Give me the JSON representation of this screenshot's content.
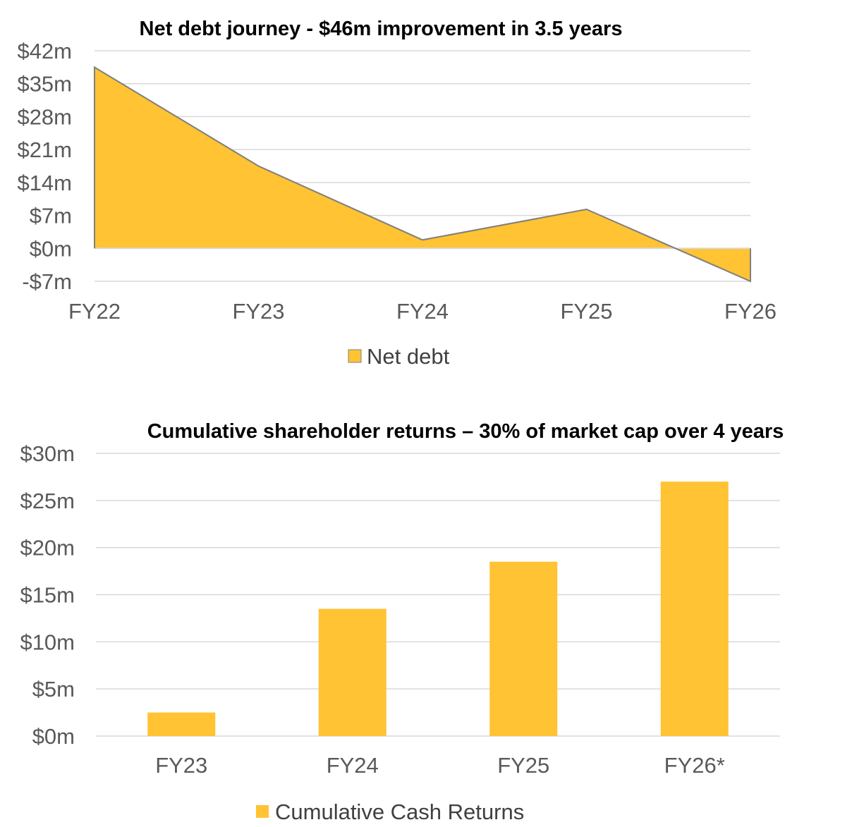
{
  "colors": {
    "fill": "#FFC333",
    "outline": "#7F7F7F",
    "grid": "#D9D9D9"
  },
  "chart_data": [
    {
      "type": "area",
      "title": "Net debt journey - $46m improvement in 3.5 years",
      "categories": [
        "FY22",
        "FY23",
        "FY24",
        "FY25",
        "FY26"
      ],
      "series": [
        {
          "name": "Net debt",
          "values": [
            38.5,
            17.5,
            1.8,
            8.3,
            -7
          ]
        }
      ],
      "ylim": [
        -7,
        42
      ],
      "yticks": [
        42,
        35,
        28,
        21,
        14,
        7,
        0,
        -7
      ],
      "ytick_labels": [
        "$42m",
        "$35m",
        "$28m",
        "$21m",
        "$14m",
        "$7m",
        "$0m",
        "-$7m"
      ],
      "grid": true,
      "legend": "bottom"
    },
    {
      "type": "bar",
      "title": "Cumulative shareholder returns – 30% of market cap over 4 years",
      "categories": [
        "FY23",
        "FY24",
        "FY25",
        "FY26*"
      ],
      "series": [
        {
          "name": "Cumulative Cash Returns",
          "values": [
            2.5,
            13.5,
            18.5,
            27
          ]
        }
      ],
      "ylim": [
        0,
        30
      ],
      "yticks": [
        30,
        25,
        20,
        15,
        10,
        5,
        0
      ],
      "ytick_labels": [
        "$30m",
        "$25m",
        "$20m",
        "$15m",
        "$10m",
        "$5m",
        "$0m"
      ],
      "grid": true,
      "legend": "bottom"
    }
  ]
}
